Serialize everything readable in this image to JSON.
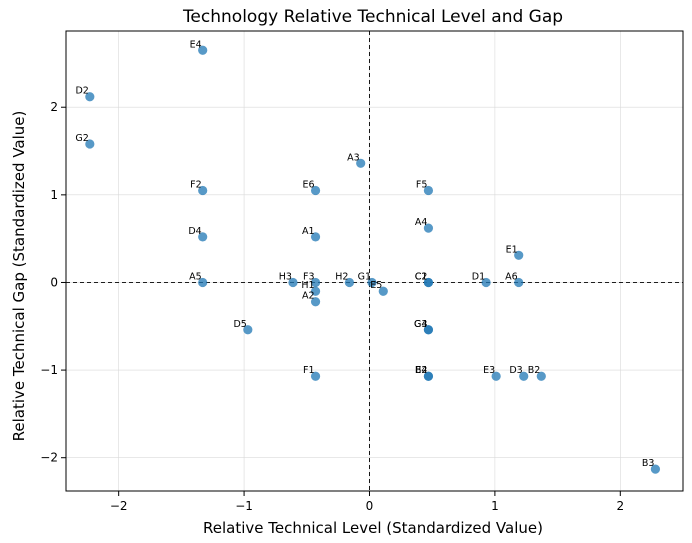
{
  "chart_data": {
    "type": "scatter",
    "title": "Technology Relative Technical Level and Gap",
    "xlabel": "Relative Technical Level (Standardized Value)",
    "ylabel": "Relative Technical Gap (Standardized Value)",
    "xlim": [
      -2.42,
      2.5
    ],
    "ylim": [
      -2.38,
      2.87
    ],
    "xticks": [
      -2,
      -1,
      0,
      1,
      2
    ],
    "yticks": [
      -2,
      -1,
      0,
      1,
      2
    ],
    "xtick_labels": [
      "−2",
      "−1",
      "0",
      "1",
      "2"
    ],
    "ytick_labels": [
      "−2",
      "−1",
      "0",
      "1",
      "2"
    ],
    "grid": true,
    "reference_lines": {
      "x": 0,
      "y": 0
    },
    "point_color": "#1f77b4",
    "points": [
      {
        "label": "E4",
        "x": -1.33,
        "y": 2.65
      },
      {
        "label": "D2",
        "x": -2.23,
        "y": 2.12
      },
      {
        "label": "G2",
        "x": -2.23,
        "y": 1.58
      },
      {
        "label": "A3",
        "x": -0.07,
        "y": 1.36
      },
      {
        "label": "F2",
        "x": -1.33,
        "y": 1.05
      },
      {
        "label": "E6",
        "x": -0.43,
        "y": 1.05
      },
      {
        "label": "F5",
        "x": 0.47,
        "y": 1.05
      },
      {
        "label": "A4",
        "x": 0.47,
        "y": 0.62
      },
      {
        "label": "D4",
        "x": -1.33,
        "y": 0.52
      },
      {
        "label": "A1",
        "x": -0.43,
        "y": 0.52
      },
      {
        "label": "E1",
        "x": 1.19,
        "y": 0.31
      },
      {
        "label": "A5",
        "x": -1.33,
        "y": 0.0
      },
      {
        "label": "H3",
        "x": -0.61,
        "y": 0.0
      },
      {
        "label": "F3",
        "x": -0.43,
        "y": 0.0
      },
      {
        "label": "H2",
        "x": -0.16,
        "y": 0.0
      },
      {
        "label": "G1",
        "x": 0.02,
        "y": 0.0
      },
      {
        "label": "C1",
        "x": 0.47,
        "y": 0.0
      },
      {
        "label": "C2",
        "x": 0.47,
        "y": 0.0
      },
      {
        "label": "D1",
        "x": 0.93,
        "y": 0.0
      },
      {
        "label": "A6",
        "x": 1.19,
        "y": 0.0
      },
      {
        "label": "H1",
        "x": -0.43,
        "y": -0.1
      },
      {
        "label": "E5",
        "x": 0.11,
        "y": -0.1
      },
      {
        "label": "A2",
        "x": -0.43,
        "y": -0.22
      },
      {
        "label": "G3",
        "x": 0.47,
        "y": -0.54
      },
      {
        "label": "G4",
        "x": 0.47,
        "y": -0.54
      },
      {
        "label": "D5",
        "x": -0.97,
        "y": -0.54
      },
      {
        "label": "F1",
        "x": -0.43,
        "y": -1.07
      },
      {
        "label": "E2",
        "x": 0.47,
        "y": -1.07
      },
      {
        "label": "B4",
        "x": 0.47,
        "y": -1.07
      },
      {
        "label": "E3",
        "x": 1.01,
        "y": -1.07
      },
      {
        "label": "D3",
        "x": 1.23,
        "y": -1.07
      },
      {
        "label": "B2",
        "x": 1.37,
        "y": -1.07
      },
      {
        "label": "B3",
        "x": 2.28,
        "y": -2.13
      }
    ]
  }
}
